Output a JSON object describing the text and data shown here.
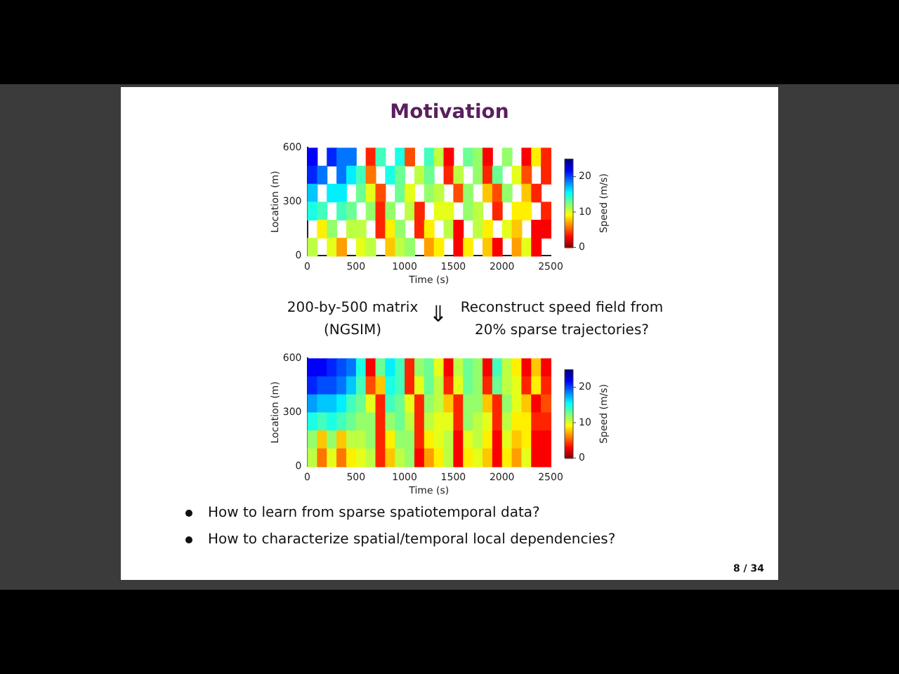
{
  "chart_data": [
    {
      "type": "heatmap",
      "title": "Motivation",
      "xlabel": "Time (s)",
      "ylabel": "Location (m)",
      "clabel": "Speed (m/s)",
      "cells": [
        [
          22,
          null,
          21,
          19,
          19,
          null,
          4,
          14,
          null,
          15,
          5,
          null,
          14,
          11,
          3,
          null,
          13,
          12,
          3,
          null,
          12,
          null,
          3,
          9,
          4
        ],
        [
          21,
          19,
          null,
          19,
          16,
          14,
          6,
          null,
          15,
          13,
          null,
          11,
          13,
          null,
          4,
          11,
          null,
          12,
          4,
          13,
          null,
          10,
          5,
          null,
          4
        ],
        [
          17,
          null,
          16,
          16,
          null,
          13,
          10,
          5,
          null,
          13,
          10,
          null,
          12,
          11,
          null,
          5,
          12,
          null,
          8,
          5,
          12,
          null,
          8,
          4,
          null
        ],
        [
          15,
          14,
          null,
          14,
          13,
          null,
          12,
          4,
          12,
          null,
          11,
          4,
          null,
          10,
          10,
          null,
          12,
          11,
          null,
          4,
          null,
          9,
          9,
          null,
          4
        ],
        [
          null,
          9,
          12,
          null,
          11,
          11,
          null,
          4,
          9,
          12,
          null,
          4,
          9,
          null,
          11,
          3,
          null,
          11,
          9,
          null,
          10,
          8,
          null,
          3,
          3
        ],
        [
          11,
          null,
          10,
          7,
          null,
          10,
          11,
          null,
          8,
          11,
          12,
          null,
          7,
          9,
          null,
          3,
          9,
          null,
          8,
          3,
          null,
          7,
          10,
          3,
          null
        ]
      ],
      "clim": [
        0,
        25
      ],
      "cticks": [
        0,
        10,
        20
      ],
      "xlim": [
        0,
        2500
      ],
      "xticks": [
        0,
        500,
        1000,
        1500,
        2000,
        2500
      ],
      "ylim": [
        0,
        600
      ],
      "yticks": [
        0,
        300,
        600
      ],
      "annotations": [
        "200-by-500 matrix (NGSIM)",
        "⇓",
        "Reconstruct speed field from 20% sparse trajectories?"
      ]
    },
    {
      "type": "heatmap",
      "xlabel": "Time (s)",
      "ylabel": "Location (m)",
      "clabel": "Speed (m/s)",
      "cells": [
        [
          22,
          22,
          21,
          20,
          19,
          15,
          3,
          13,
          16,
          14,
          4,
          12,
          13,
          10,
          3,
          11,
          13,
          12,
          3,
          14,
          11,
          9,
          3,
          8,
          3
        ],
        [
          21,
          20,
          20,
          19,
          17,
          14,
          5,
          8,
          15,
          14,
          4,
          10,
          13,
          11,
          4,
          10,
          13,
          12,
          4,
          13,
          11,
          10,
          4,
          9,
          4
        ],
        [
          18,
          17,
          17,
          16,
          14,
          13,
          10,
          4,
          14,
          13,
          10,
          4,
          12,
          11,
          8,
          4,
          12,
          12,
          8,
          4,
          12,
          10,
          8,
          3,
          5
        ],
        [
          15,
          14,
          15,
          14,
          13,
          12,
          12,
          4,
          12,
          13,
          11,
          4,
          11,
          10,
          10,
          4,
          12,
          11,
          10,
          4,
          11,
          9,
          9,
          4,
          4
        ],
        [
          12,
          8,
          12,
          8,
          11,
          11,
          12,
          4,
          9,
          12,
          12,
          4,
          9,
          10,
          11,
          3,
          10,
          11,
          9,
          3,
          10,
          8,
          9,
          3,
          3
        ],
        [
          11,
          6,
          10,
          6,
          9,
          10,
          11,
          4,
          8,
          11,
          12,
          3,
          7,
          9,
          11,
          3,
          9,
          10,
          8,
          3,
          9,
          7,
          10,
          3,
          3
        ]
      ],
      "clim": [
        0,
        25
      ],
      "cticks": [
        0,
        10,
        20
      ],
      "xlim": [
        0,
        2500
      ],
      "xticks": [
        0,
        500,
        1000,
        1500,
        2000,
        2500
      ],
      "ylim": [
        0,
        600
      ],
      "yticks": [
        0,
        300,
        600
      ],
      "annotations": [
        "How to learn from sparse spatiotemporal data?",
        "How to characterize spatial/temporal local dependencies?",
        "8 / 34"
      ]
    }
  ]
}
